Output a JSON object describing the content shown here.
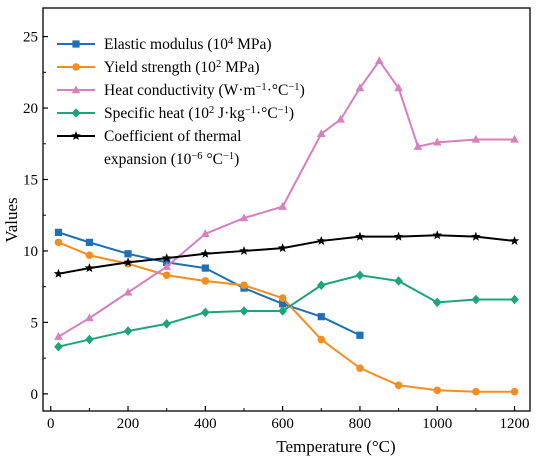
{
  "chart_data": {
    "type": "line",
    "xlabel": "Temperature (°C)",
    "ylabel": "Values",
    "xlim": [
      -20,
      1240
    ],
    "ylim": [
      -1.2,
      27
    ],
    "xticks": [
      0,
      200,
      400,
      600,
      800,
      1000,
      1200
    ],
    "yticks": [
      0,
      5,
      10,
      15,
      20,
      25
    ],
    "grid": false,
    "legend_position": "top-left",
    "series": [
      {
        "name": "Elastic modulus (10^4 MPa)",
        "legend_parts": [
          [
            "Elastic modulus (10",
            ""
          ],
          [
            "4",
            "sup"
          ],
          [
            " MPa)",
            ""
          ]
        ],
        "color": "#1f6fb4",
        "marker": "square",
        "x": [
          20,
          100,
          200,
          300,
          400,
          500,
          600,
          700,
          800
        ],
        "y": [
          11.3,
          10.6,
          9.8,
          9.2,
          8.8,
          7.4,
          6.3,
          5.4,
          4.1
        ]
      },
      {
        "name": "Yield strength (10^2 MPa)",
        "legend_parts": [
          [
            "Yield strength (10",
            ""
          ],
          [
            "2",
            "sup"
          ],
          [
            " MPa)",
            ""
          ]
        ],
        "color": "#f58d1f",
        "marker": "circle",
        "x": [
          20,
          100,
          200,
          300,
          400,
          500,
          600,
          700,
          800,
          900,
          1000,
          1100,
          1200
        ],
        "y": [
          10.6,
          9.7,
          9.1,
          8.3,
          7.9,
          7.6,
          6.7,
          3.8,
          1.8,
          0.6,
          0.25,
          0.15,
          0.15
        ]
      },
      {
        "name": "Heat conductivity (W·m^-1·°C^-1)",
        "legend_parts": [
          [
            "Heat conductivity (W·m",
            ""
          ],
          [
            "−1",
            "sup"
          ],
          [
            "·°C",
            ""
          ],
          [
            "−1",
            "sup"
          ],
          [
            ")",
            ""
          ]
        ],
        "color": "#d77fc0",
        "marker": "triangle",
        "x": [
          20,
          100,
          200,
          300,
          400,
          500,
          600,
          700,
          750,
          800,
          850,
          900,
          950,
          1000,
          1100,
          1200
        ],
        "y": [
          4.0,
          5.3,
          7.1,
          8.9,
          11.2,
          12.3,
          13.1,
          18.2,
          19.2,
          21.4,
          23.3,
          21.4,
          17.3,
          17.6,
          17.8,
          17.8
        ]
      },
      {
        "name": "Specific heat (10^2 J·kg^-1·°C^-1)",
        "legend_parts": [
          [
            "Specific heat (10",
            ""
          ],
          [
            "2",
            "sup"
          ],
          [
            " J·kg",
            ""
          ],
          [
            "−1",
            "sup"
          ],
          [
            "·°C",
            ""
          ],
          [
            "−1",
            "sup"
          ],
          [
            ")",
            ""
          ]
        ],
        "color": "#1da57a",
        "marker": "diamond",
        "x": [
          20,
          100,
          200,
          300,
          400,
          500,
          600,
          700,
          800,
          900,
          1000,
          1100,
          1200
        ],
        "y": [
          3.3,
          3.8,
          4.4,
          4.9,
          5.7,
          5.8,
          5.8,
          7.6,
          8.3,
          7.9,
          6.4,
          6.6,
          6.6
        ]
      },
      {
        "name": "Coefficient of thermal expansion (10^-6 °C^-1)",
        "legend_lines": [
          [
            [
              "Coefficient of thermal",
              ""
            ]
          ],
          [
            [
              "expansion (10",
              ""
            ],
            [
              "−6",
              "sup"
            ],
            [
              " °C",
              ""
            ],
            [
              "−1",
              "sup"
            ],
            [
              ")",
              ""
            ]
          ]
        ],
        "color": "#000000",
        "marker": "star",
        "x": [
          20,
          100,
          200,
          300,
          400,
          500,
          600,
          700,
          800,
          900,
          1000,
          1100,
          1200
        ],
        "y": [
          8.4,
          8.8,
          9.2,
          9.5,
          9.8,
          10.0,
          10.2,
          10.7,
          11.0,
          11.0,
          11.1,
          11.0,
          10.7
        ]
      }
    ]
  }
}
